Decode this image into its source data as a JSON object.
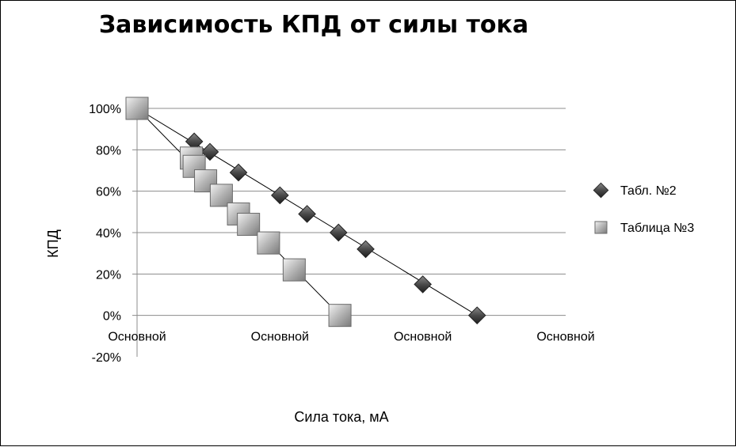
{
  "chart_data": {
    "type": "scatter",
    "title": "Зависимость КПД от силы тока",
    "xlabel": "Сила тока, мА",
    "ylabel": "КПД",
    "x_tick_labels": [
      "Основной",
      "Основной",
      "Основной",
      "Основной"
    ],
    "xlim": [
      0,
      3
    ],
    "ylim": [
      -0.2,
      1.0
    ],
    "y_tick_labels": [
      "-20%",
      "0%",
      "20%",
      "40%",
      "60%",
      "80%",
      "100%"
    ],
    "y_ticks": [
      -0.2,
      0,
      0.2,
      0.4,
      0.6,
      0.8,
      1.0
    ],
    "grid": "horizontal",
    "legend_position": "right",
    "series": [
      {
        "name": "Табл. №2",
        "marker": "diamond",
        "color": "#3a3a3a",
        "trendline": true,
        "points": [
          {
            "x": 0.4,
            "y": 0.84
          },
          {
            "x": 0.51,
            "y": 0.79
          },
          {
            "x": 0.71,
            "y": 0.69
          },
          {
            "x": 1.0,
            "y": 0.58
          },
          {
            "x": 1.19,
            "y": 0.49
          },
          {
            "x": 1.41,
            "y": 0.4
          },
          {
            "x": 1.6,
            "y": 0.32
          },
          {
            "x": 2.0,
            "y": 0.15
          },
          {
            "x": 2.38,
            "y": 0.0
          }
        ]
      },
      {
        "name": "Таблица №3",
        "marker": "square",
        "color": "#a8a8a8",
        "trendline": true,
        "points": [
          {
            "x": 0.0,
            "y": 1.0
          },
          {
            "x": 0.38,
            "y": 0.76
          },
          {
            "x": 0.4,
            "y": 0.72
          },
          {
            "x": 0.48,
            "y": 0.65
          },
          {
            "x": 0.59,
            "y": 0.58
          },
          {
            "x": 0.71,
            "y": 0.49
          },
          {
            "x": 0.78,
            "y": 0.44
          },
          {
            "x": 0.92,
            "y": 0.35
          },
          {
            "x": 1.1,
            "y": 0.22
          },
          {
            "x": 1.42,
            "y": 0.0
          }
        ]
      }
    ]
  }
}
